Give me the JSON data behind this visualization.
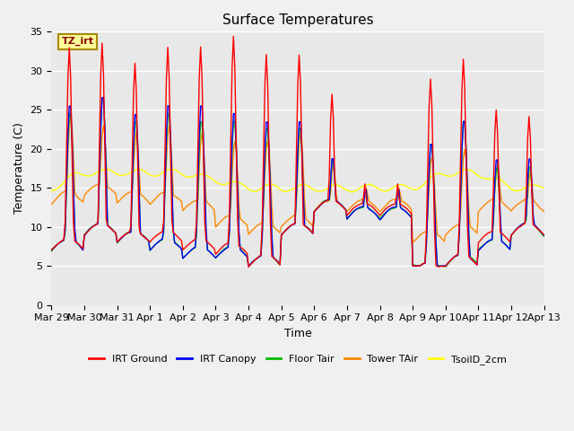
{
  "title": "Surface Temperatures",
  "xlabel": "Time",
  "ylabel": "Temperature (C)",
  "ylim": [
    0,
    35
  ],
  "yticks": [
    0,
    5,
    10,
    15,
    20,
    25,
    30,
    35
  ],
  "series_colors": {
    "IRT Ground": "#ff0000",
    "IRT Canopy": "#0000ff",
    "Floor Tair": "#00bb00",
    "Tower TAir": "#ff8800",
    "TsoilD_2cm": "#ffff00"
  },
  "annotation_text": "TZ_irt",
  "annotation_bbox_facecolor": "#ffff99",
  "annotation_bbox_edgecolor": "#aa8800",
  "plot_background": "#e8e8e8",
  "grid_color": "#ffffff",
  "title_fontsize": 11,
  "axis_label_fontsize": 9,
  "tick_fontsize": 8,
  "legend_fontsize": 8,
  "line_width": 1.0,
  "day_labels": [
    "Mar 29",
    "Mar 30",
    "Mar 31",
    "Apr 1",
    "Apr 2",
    "Apr 3",
    "Apr 4",
    "Apr 5",
    "Apr 6",
    "Apr 7",
    "Apr 8",
    "Apr 9",
    "Apr 10",
    "Apr 11",
    "Apr 12",
    "Apr 13"
  ]
}
